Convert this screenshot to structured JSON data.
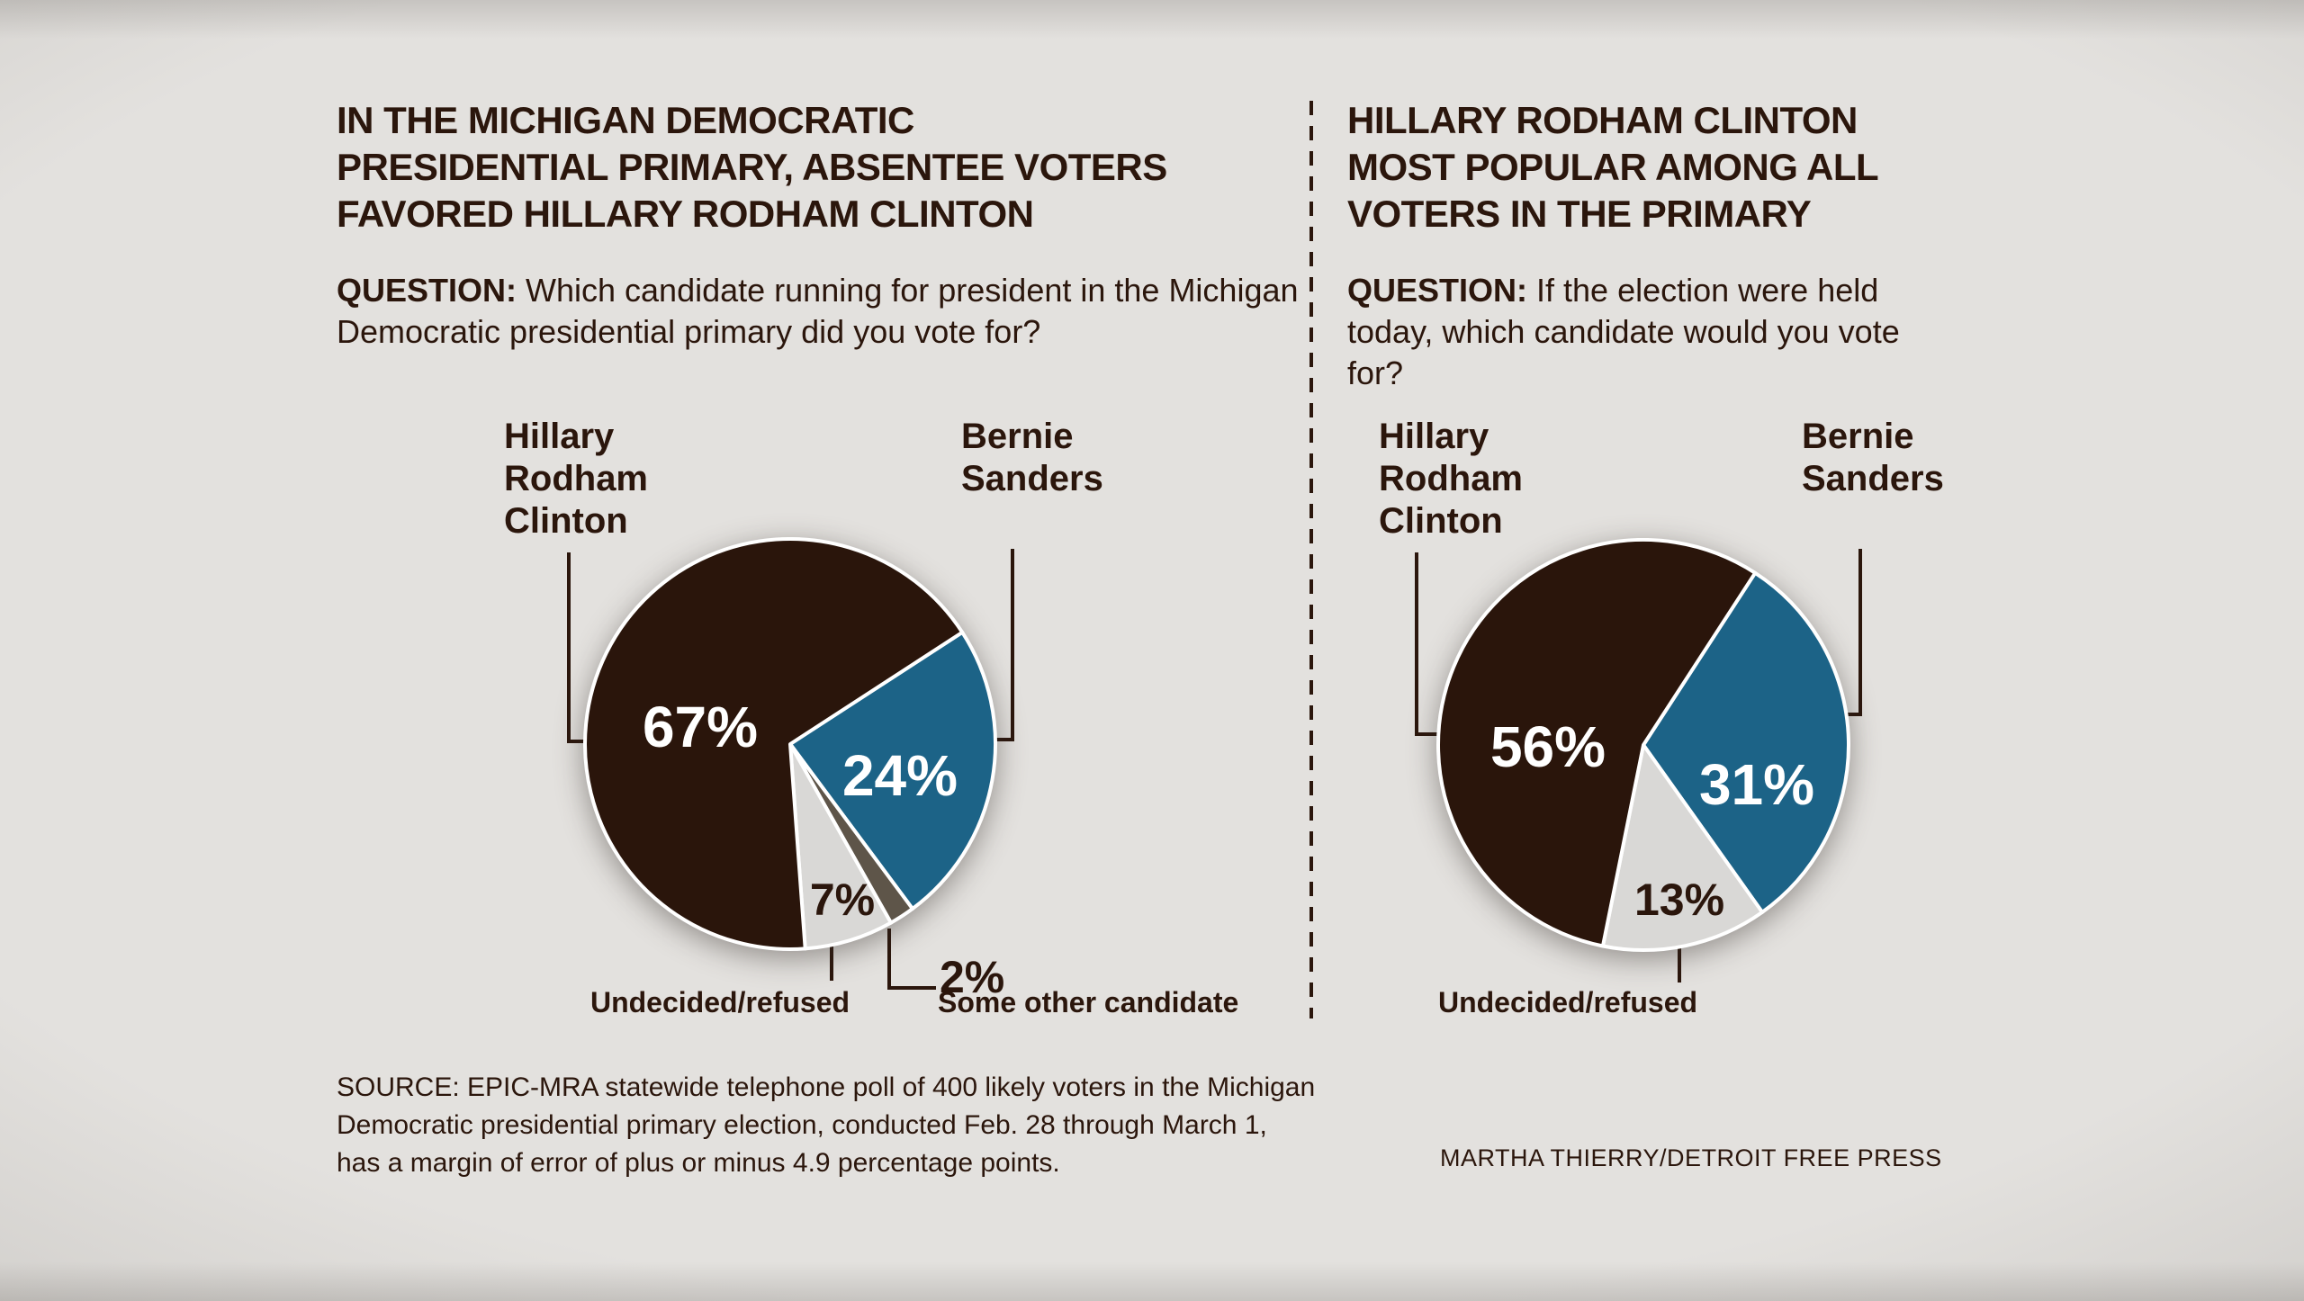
{
  "page": {
    "background_color": "#e3e1de",
    "text_color": "#2b160c",
    "divider_color": "#2b160c"
  },
  "left_chart": {
    "title_lines": [
      "IN THE MICHIGAN DEMOCRATIC",
      "PRESIDENTIAL PRIMARY, ABSENTEE VOTERS",
      "FAVORED HILLARY RODHAM CLINTON"
    ],
    "question_label": "QUESTION:",
    "question_text": " Which candidate running for president in the Michigan Democratic presidential primary did you vote for?",
    "clinton_label_lines": [
      "Hillary",
      "Rodham",
      "Clinton"
    ],
    "sanders_label_lines": [
      "Bernie",
      "Sanders"
    ],
    "undecided_label": "Undecided/refused",
    "other_label": "Some other candidate"
  },
  "right_chart": {
    "title_lines": [
      "HILLARY RODHAM CLINTON",
      "MOST POPULAR AMONG ALL",
      "VOTERS IN THE PRIMARY"
    ],
    "question_label": "QUESTION:",
    "question_text": " If the election were held today, which candidate would you vote for?",
    "clinton_label_lines": [
      "Hillary",
      "Rodham",
      "Clinton"
    ],
    "sanders_label_lines": [
      "Bernie",
      "Sanders"
    ],
    "undecided_label": "Undecided/refused"
  },
  "chart_data": [
    {
      "type": "pie",
      "title": "In the Michigan Democratic presidential primary, absentee voters favored Hillary Rodham Clinton",
      "question": "Which candidate running for president in the Michigan Democratic presidential primary did you vote for?",
      "total": 100,
      "start_angle_deg": 57,
      "slices": [
        {
          "key": "sanders",
          "label": "Bernie Sanders",
          "value": 24,
          "pct_label": "24%",
          "color": "#1c6387"
        },
        {
          "key": "other",
          "label": "Some other candidate",
          "value": 2,
          "pct_label": "2%",
          "color": "#5e5549"
        },
        {
          "key": "undecided",
          "label": "Undecided/refused",
          "value": 7,
          "pct_label": "7%",
          "color": "#d9d8d6"
        },
        {
          "key": "clinton",
          "label": "Hillary Rodham Clinton",
          "value": 67,
          "pct_label": "67%",
          "color": "#2a150b"
        }
      ]
    },
    {
      "type": "pie",
      "title": "Hillary Rodham Clinton most popular among all voters in the primary",
      "question": "If the election were held today, which candidate would you vote for?",
      "total": 100,
      "start_angle_deg": 33,
      "slices": [
        {
          "key": "sanders",
          "label": "Bernie Sanders",
          "value": 31,
          "pct_label": "31%",
          "color": "#1c6387"
        },
        {
          "key": "undecided",
          "label": "Undecided/refused",
          "value": 13,
          "pct_label": "13%",
          "color": "#d9d8d6"
        },
        {
          "key": "clinton",
          "label": "Hillary Rodham Clinton",
          "value": 56,
          "pct_label": "56%",
          "color": "#2a150b"
        }
      ]
    }
  ],
  "footer": {
    "source_lines": [
      "SOURCE: EPIC-MRA statewide telephone poll of 400 likely voters in the Michigan",
      "Democratic presidential primary election, conducted Feb. 28 through March 1,",
      "has a margin of error of plus or minus 4.9 percentage points."
    ],
    "credit": "MARTHA THIERRY/DETROIT FREE PRESS"
  }
}
